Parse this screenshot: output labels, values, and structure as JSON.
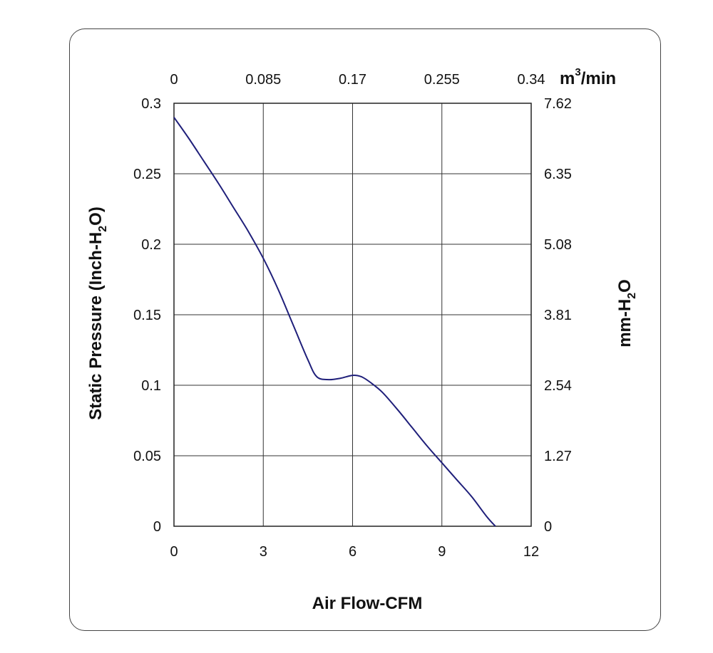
{
  "chart_data": {
    "type": "line",
    "xlabel": "Air Flow-CFM",
    "ylabel_main": "Static Pressure (Inch-H",
    "ylabel_sub": "2",
    "ylabel_end": "O)",
    "y2label_main": "mm-H",
    "y2label_sub": "2",
    "y2label_end": "O",
    "x2label_main": "m",
    "x2label_sup": "3",
    "x2label_end": "/min",
    "xlim": [
      0,
      12
    ],
    "ylim": [
      0,
      0.3
    ],
    "grid": true,
    "x_ticks": [
      "0",
      "3",
      "6",
      "9",
      "12"
    ],
    "y_ticks": [
      "0",
      "0.05",
      "0.1",
      "0.15",
      "0.2",
      "0.25",
      "0.3"
    ],
    "x2_ticks": [
      "0",
      "0.085",
      "0.17",
      "0.255",
      "0.34"
    ],
    "y2_ticks": [
      "0",
      "1.27",
      "2.54",
      "3.81",
      "5.08",
      "6.35",
      "7.62"
    ],
    "line_color": "#1f1f7a",
    "series": [
      {
        "x": [
          0,
          0.5,
          1,
          1.5,
          2,
          2.5,
          3,
          3.5,
          4,
          4.5,
          4.8,
          5.2,
          5.6,
          6,
          6.3,
          6.6,
          7,
          7.5,
          8,
          8.5,
          9,
          9.5,
          10,
          10.5,
          10.8
        ],
        "y": [
          0.29,
          0.275,
          0.259,
          0.243,
          0.226,
          0.209,
          0.19,
          0.168,
          0.143,
          0.118,
          0.106,
          0.104,
          0.105,
          0.107,
          0.106,
          0.102,
          0.095,
          0.083,
          0.07,
          0.057,
          0.045,
          0.033,
          0.021,
          0.007,
          0
        ]
      }
    ]
  }
}
